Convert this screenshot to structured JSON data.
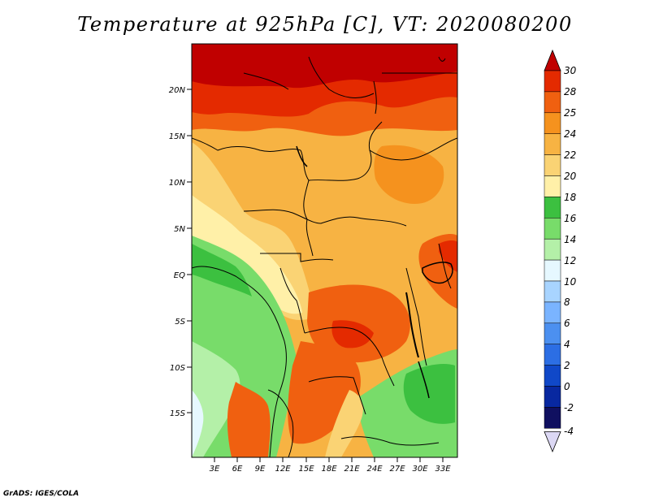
{
  "title": "Temperature at 925hPa [C], VT: 2020080200",
  "credit": "GrADS: IGES/COLA",
  "map": {
    "lat_ticks": [
      "20N",
      "15N",
      "10N",
      "5N",
      "EQ",
      "5S",
      "10S",
      "15S"
    ],
    "lon_ticks": [
      "3E",
      "6E",
      "9E",
      "12E",
      "15E",
      "18E",
      "21E",
      "24E",
      "27E",
      "30E",
      "33E"
    ]
  },
  "colorbar": {
    "labels": [
      "30",
      "28",
      "25",
      "24",
      "22",
      "20",
      "18",
      "16",
      "14",
      "12",
      "10",
      "8",
      "6",
      "4",
      "2",
      "0",
      "-2",
      "-4"
    ],
    "colors": [
      "#c00000",
      "#e42a00",
      "#f06010",
      "#f5921e",
      "#f7b343",
      "#fad374",
      "#fff0a8",
      "#3cc040",
      "#78dc6a",
      "#b4f0a8",
      "#e6f8ff",
      "#a8d4ff",
      "#7ab4ff",
      "#4c90f0",
      "#2c6ee4",
      "#1048c8",
      "#0828a0",
      "#101060"
    ]
  }
}
